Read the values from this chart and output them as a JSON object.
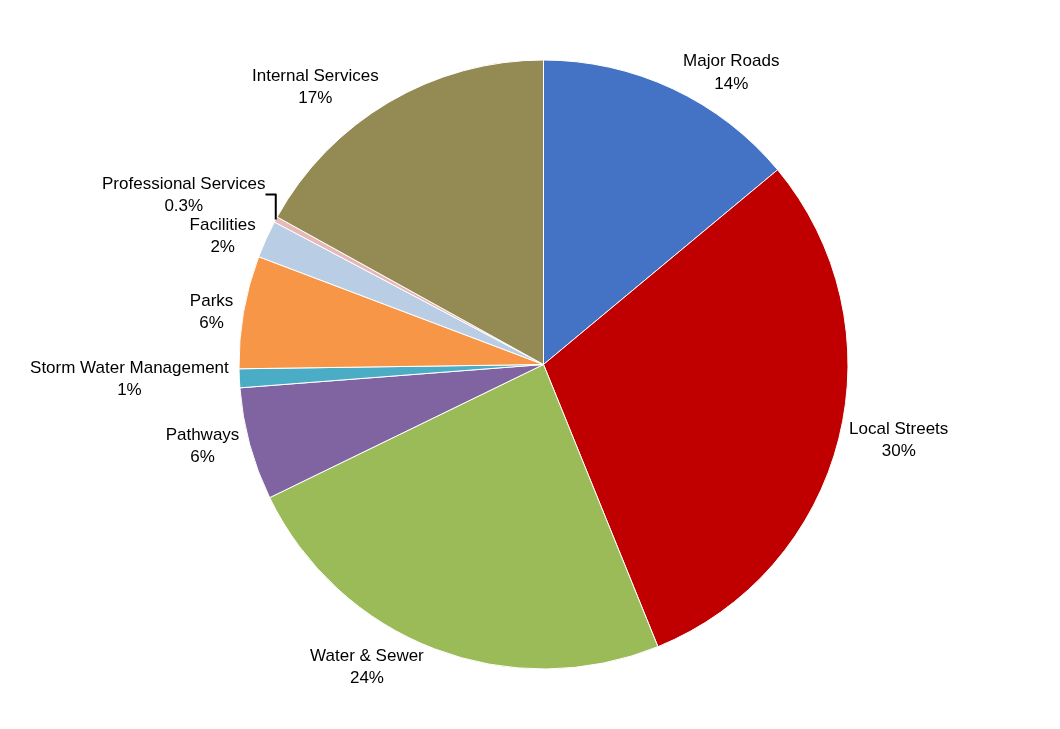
{
  "chart_data": {
    "type": "pie",
    "categories": [
      "Major Roads",
      "Local Streets",
      "Water & Sewer",
      "Pathways",
      "Storm Water Management",
      "Parks",
      "Facilities",
      "Professional Services",
      "Internal Services"
    ],
    "values": [
      14,
      30,
      24,
      6,
      1,
      6,
      2,
      0.3,
      17
    ],
    "value_labels": [
      "14%",
      "30%",
      "24%",
      "6%",
      "1%",
      "6%",
      "2%",
      "0.3%",
      "17%"
    ],
    "colors": [
      "#4472c4",
      "#c00000",
      "#9bbb59",
      "#8064a2",
      "#4bacc6",
      "#f79646",
      "#b9cde5",
      "#e6b9b8",
      "#948a54"
    ],
    "legend": false
  }
}
